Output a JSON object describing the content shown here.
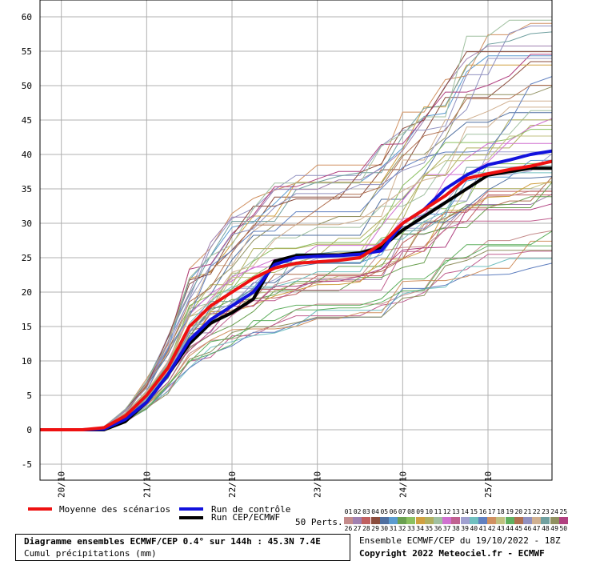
{
  "chart_data": {
    "type": "line",
    "title": "Diagramme ensembles ECMWF/CEP 0.4° sur 144h : 45.3N 7.4E",
    "subtitle": "Cumul précipitations (mm)",
    "ylim": [
      -7.5,
      61
    ],
    "y_ticks": [
      -5,
      0,
      5,
      10,
      15,
      20,
      25,
      30,
      35,
      40,
      45,
      50,
      55,
      60
    ],
    "x_range": [
      0,
      144
    ],
    "x_tick_labels": [
      {
        "label": "20/10",
        "hour": 6
      },
      {
        "label": "21/10",
        "hour": 30
      },
      {
        "label": "22/10",
        "hour": 54
      },
      {
        "label": "23/10",
        "hour": 78
      },
      {
        "label": "24/10",
        "hour": 102
      },
      {
        "label": "25/10",
        "hour": 126
      }
    ],
    "hours": [
      0,
      6,
      12,
      18,
      24,
      30,
      36,
      42,
      48,
      54,
      60,
      66,
      72,
      78,
      84,
      90,
      96,
      102,
      108,
      114,
      120,
      126,
      132,
      138,
      144
    ],
    "grid": true,
    "series": [
      {
        "name": "Moyenne des scénarios",
        "color": "#ee1111",
        "width": 4,
        "values": [
          0,
          0,
          0,
          0.3,
          2,
          5,
          9,
          15,
          18,
          20,
          22,
          23.5,
          24.2,
          24.4,
          24.6,
          25,
          27,
          30,
          32,
          34,
          36.5,
          37.2,
          37.8,
          38.3,
          39
        ]
      },
      {
        "name": "Run de contrôle",
        "color": "#1111dd",
        "width": 4,
        "values": [
          0,
          0,
          0,
          0.1,
          1.5,
          4,
          8,
          13,
          16,
          18,
          20,
          24,
          25,
          25.2,
          25.3,
          25.5,
          26,
          30,
          32,
          35,
          37,
          38.5,
          39.2,
          40,
          40.5
        ]
      },
      {
        "name": "Run CEP/ECMWF",
        "color": "#000000",
        "width": 4,
        "values": [
          0,
          0,
          0,
          0,
          1.2,
          4,
          8,
          12.5,
          15.5,
          17,
          19,
          24.5,
          25.3,
          25.4,
          25.4,
          25.7,
          26.5,
          29,
          31,
          33,
          35,
          37,
          37.5,
          38,
          38
        ]
      }
    ],
    "members_count": 50,
    "member_colors": [
      "#c48b8b",
      "#a080b0",
      "#c06060",
      "#8b4c3c",
      "#4f6fa0",
      "#5a9bd0",
      "#6aa050",
      "#8bc060",
      "#d0a040",
      "#b0b060",
      "#a0c0a0",
      "#d070d0",
      "#c06090",
      "#a0a0d0",
      "#70c0c0",
      "#6080c0",
      "#d09060",
      "#c0c080",
      "#60b060",
      "#b07050",
      "#9090c0",
      "#d0b090",
      "#70a0a0",
      "#909060",
      "#b04080"
    ],
    "legend": {
      "perts_label": "50 Perts.",
      "numbers_top": [
        "01",
        "02",
        "03",
        "04",
        "05",
        "06",
        "07",
        "08",
        "09",
        "10",
        "11",
        "12",
        "13",
        "14",
        "15",
        "16",
        "17",
        "18",
        "19",
        "20",
        "21",
        "22",
        "23",
        "24",
        "25"
      ],
      "numbers_bottom": [
        "26",
        "27",
        "28",
        "29",
        "30",
        "31",
        "32",
        "33",
        "34",
        "35",
        "36",
        "37",
        "38",
        "39",
        "40",
        "41",
        "42",
        "43",
        "44",
        "45",
        "46",
        "47",
        "48",
        "49",
        "50"
      ]
    },
    "credits": {
      "line1": "Ensemble ECMWF/CEP du 19/10/2022 - 18Z",
      "line2": "Copyright 2022 Meteociel.fr - ECMWF"
    }
  }
}
